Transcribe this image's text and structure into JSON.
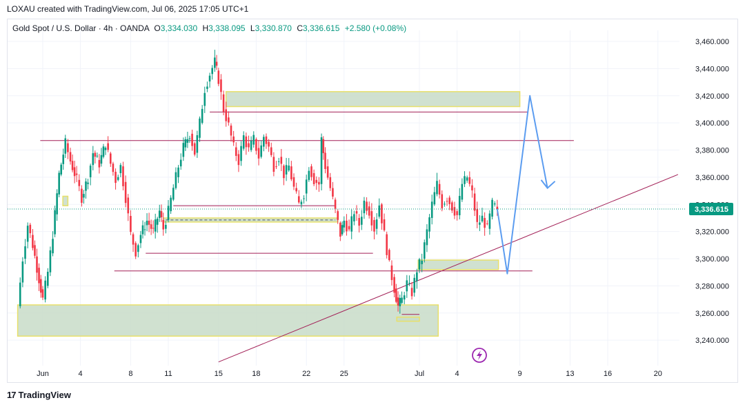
{
  "header": {
    "credit": "LOXAU created with TradingView.com, Jul 06, 2025 17:05 UTC+1"
  },
  "legend": {
    "symbol": "Gold Spot / U.S. Dollar · 4h · OANDA",
    "open_label": "O",
    "open": "3,334.030",
    "high_label": "H",
    "high": "3,338.095",
    "low_label": "L",
    "low": "3,330.870",
    "close_label": "C",
    "close": "3,336.615",
    "change": "+2.580 (+0.08%)"
  },
  "footer": {
    "brand": "TradingView",
    "logo_text": "17"
  },
  "colors": {
    "up": "#089981",
    "down": "#f23645",
    "zone_fill": "#c8dcc8",
    "zone_border": "#e8e06a",
    "level": "#a21f56",
    "projection": "#5b9cf0",
    "last_price_bg": "#089981"
  },
  "chart_data": {
    "type": "candlestick",
    "price_axis": {
      "range": [
        3230,
        3470
      ],
      "ticks": [
        "3,240.000",
        "3,260.000",
        "3,280.000",
        "3,300.000",
        "3,320.000",
        "3,340.000",
        "3,360.000",
        "3,380.000",
        "3,400.000",
        "3,420.000",
        "3,440.000",
        "3,460.000"
      ],
      "last_price": "3,336.615",
      "last_price_value": 3336.615
    },
    "time_axis": {
      "labels": [
        {
          "label": "Jun",
          "day": 1
        },
        {
          "label": "4",
          "day": 4
        },
        {
          "label": "8",
          "day": 8
        },
        {
          "label": "11",
          "day": 11
        },
        {
          "label": "15",
          "day": 15
        },
        {
          "label": "18",
          "day": 18
        },
        {
          "label": "22",
          "day": 22
        },
        {
          "label": "25",
          "day": 25
        },
        {
          "label": "Jul",
          "day": 31
        },
        {
          "label": "4",
          "day": 34
        },
        {
          "label": "9",
          "day": 39
        },
        {
          "label": "13",
          "day": 43
        },
        {
          "label": "16",
          "day": 46
        },
        {
          "label": "20",
          "day": 50
        }
      ]
    },
    "path": [
      [
        -1.0,
        3265
      ],
      [
        -0.6,
        3300
      ],
      [
        -0.2,
        3325
      ],
      [
        0.2,
        3310
      ],
      [
        0.7,
        3285
      ],
      [
        1.0,
        3270
      ],
      [
        1.4,
        3290
      ],
      [
        1.8,
        3318
      ],
      [
        2.3,
        3362
      ],
      [
        2.8,
        3385
      ],
      [
        3.2,
        3372
      ],
      [
        3.7,
        3358
      ],
      [
        4.1,
        3345
      ],
      [
        4.6,
        3360
      ],
      [
        5.0,
        3378
      ],
      [
        5.5,
        3370
      ],
      [
        6.0,
        3385
      ],
      [
        6.4,
        3370
      ],
      [
        6.8,
        3358
      ],
      [
        7.2,
        3368
      ],
      [
        7.6,
        3345
      ],
      [
        8.0,
        3318
      ],
      [
        8.4,
        3305
      ],
      [
        8.8,
        3318
      ],
      [
        9.3,
        3328
      ],
      [
        9.8,
        3320
      ],
      [
        10.3,
        3335
      ],
      [
        10.6,
        3322
      ],
      [
        11.0,
        3335
      ],
      [
        11.4,
        3352
      ],
      [
        11.8,
        3368
      ],
      [
        12.2,
        3382
      ],
      [
        12.7,
        3392
      ],
      [
        13.1,
        3378
      ],
      [
        13.5,
        3400
      ],
      [
        13.9,
        3425
      ],
      [
        14.3,
        3436
      ],
      [
        14.7,
        3445
      ],
      [
        15.0,
        3432
      ],
      [
        15.4,
        3410
      ],
      [
        15.8,
        3398
      ],
      [
        16.2,
        3382
      ],
      [
        16.6,
        3372
      ],
      [
        17.0,
        3390
      ],
      [
        17.4,
        3380
      ],
      [
        17.8,
        3388
      ],
      [
        18.2,
        3375
      ],
      [
        18.6,
        3390
      ],
      [
        19.0,
        3382
      ],
      [
        19.4,
        3368
      ],
      [
        19.8,
        3375
      ],
      [
        20.2,
        3362
      ],
      [
        20.6,
        3368
      ],
      [
        21.0,
        3352
      ],
      [
        21.4,
        3340
      ],
      [
        21.8,
        3348
      ],
      [
        22.2,
        3368
      ],
      [
        22.6,
        3358
      ],
      [
        23.0,
        3355
      ],
      [
        23.2,
        3388
      ],
      [
        23.5,
        3368
      ],
      [
        23.9,
        3352
      ],
      [
        24.3,
        3335
      ],
      [
        24.7,
        3318
      ],
      [
        25.0,
        3328
      ],
      [
        25.4,
        3320
      ],
      [
        25.8,
        3335
      ],
      [
        26.2,
        3325
      ],
      [
        26.6,
        3342
      ],
      [
        27.0,
        3335
      ],
      [
        27.4,
        3322
      ],
      [
        27.8,
        3340
      ],
      [
        28.2,
        3318
      ],
      [
        28.6,
        3295
      ],
      [
        29.0,
        3278
      ],
      [
        29.3,
        3265
      ],
      [
        29.6,
        3270
      ],
      [
        30.0,
        3282
      ],
      [
        30.4,
        3275
      ],
      [
        30.8,
        3292
      ],
      [
        31.2,
        3300
      ],
      [
        31.6,
        3320
      ],
      [
        32.0,
        3340
      ],
      [
        32.4,
        3355
      ],
      [
        32.8,
        3340
      ],
      [
        33.2,
        3345
      ],
      [
        33.6,
        3338
      ],
      [
        34.0,
        3332
      ],
      [
        34.4,
        3355
      ],
      [
        34.8,
        3360
      ],
      [
        35.2,
        3348
      ],
      [
        35.6,
        3325
      ],
      [
        36.0,
        3330
      ],
      [
        36.4,
        3322
      ],
      [
        36.8,
        3340
      ],
      [
        37.2,
        3336.6
      ]
    ],
    "zones": [
      {
        "d0": 15.6,
        "d1": 39.0,
        "p0": 3412,
        "p1": 3423
      },
      {
        "d0": -1.0,
        "d1": 32.5,
        "p0": 3243,
        "p1": 3266
      },
      {
        "d0": 30.9,
        "d1": 37.3,
        "p0": 3292,
        "p1": 3299
      },
      {
        "d0": 29.2,
        "d1": 31.0,
        "p0": 3254,
        "p1": 3257
      },
      {
        "d0": 10.6,
        "d1": 24.5,
        "p0": 3327,
        "p1": 3330
      },
      {
        "d0": 2.6,
        "d1": 3.0,
        "p0": 3339,
        "p1": 3346
      }
    ],
    "levels": [
      {
        "d0": 0.8,
        "d1": 43.3,
        "p": 3387
      },
      {
        "d0": 14.3,
        "d1": 39.6,
        "p": 3408
      },
      {
        "d0": 11.4,
        "d1": 24.3,
        "p": 3339
      },
      {
        "d0": 9.2,
        "d1": 27.3,
        "p": 3304
      },
      {
        "d0": 6.7,
        "d1": 40.0,
        "p": 3291
      },
      {
        "d0": 29.6,
        "d1": 31.0,
        "p": 3259
      }
    ],
    "trendline": {
      "d0": 15.0,
      "p0": 3224,
      "d1": 51.6,
      "p1": 3362
    },
    "projection": [
      [
        37.2,
        3336.6
      ],
      [
        38.0,
        3289
      ],
      [
        39.8,
        3420
      ],
      [
        41.2,
        3352
      ]
    ],
    "projection_arrowhead": [
      [
        40.7,
        3358
      ],
      [
        41.2,
        3352
      ],
      [
        41.8,
        3357
      ]
    ]
  }
}
